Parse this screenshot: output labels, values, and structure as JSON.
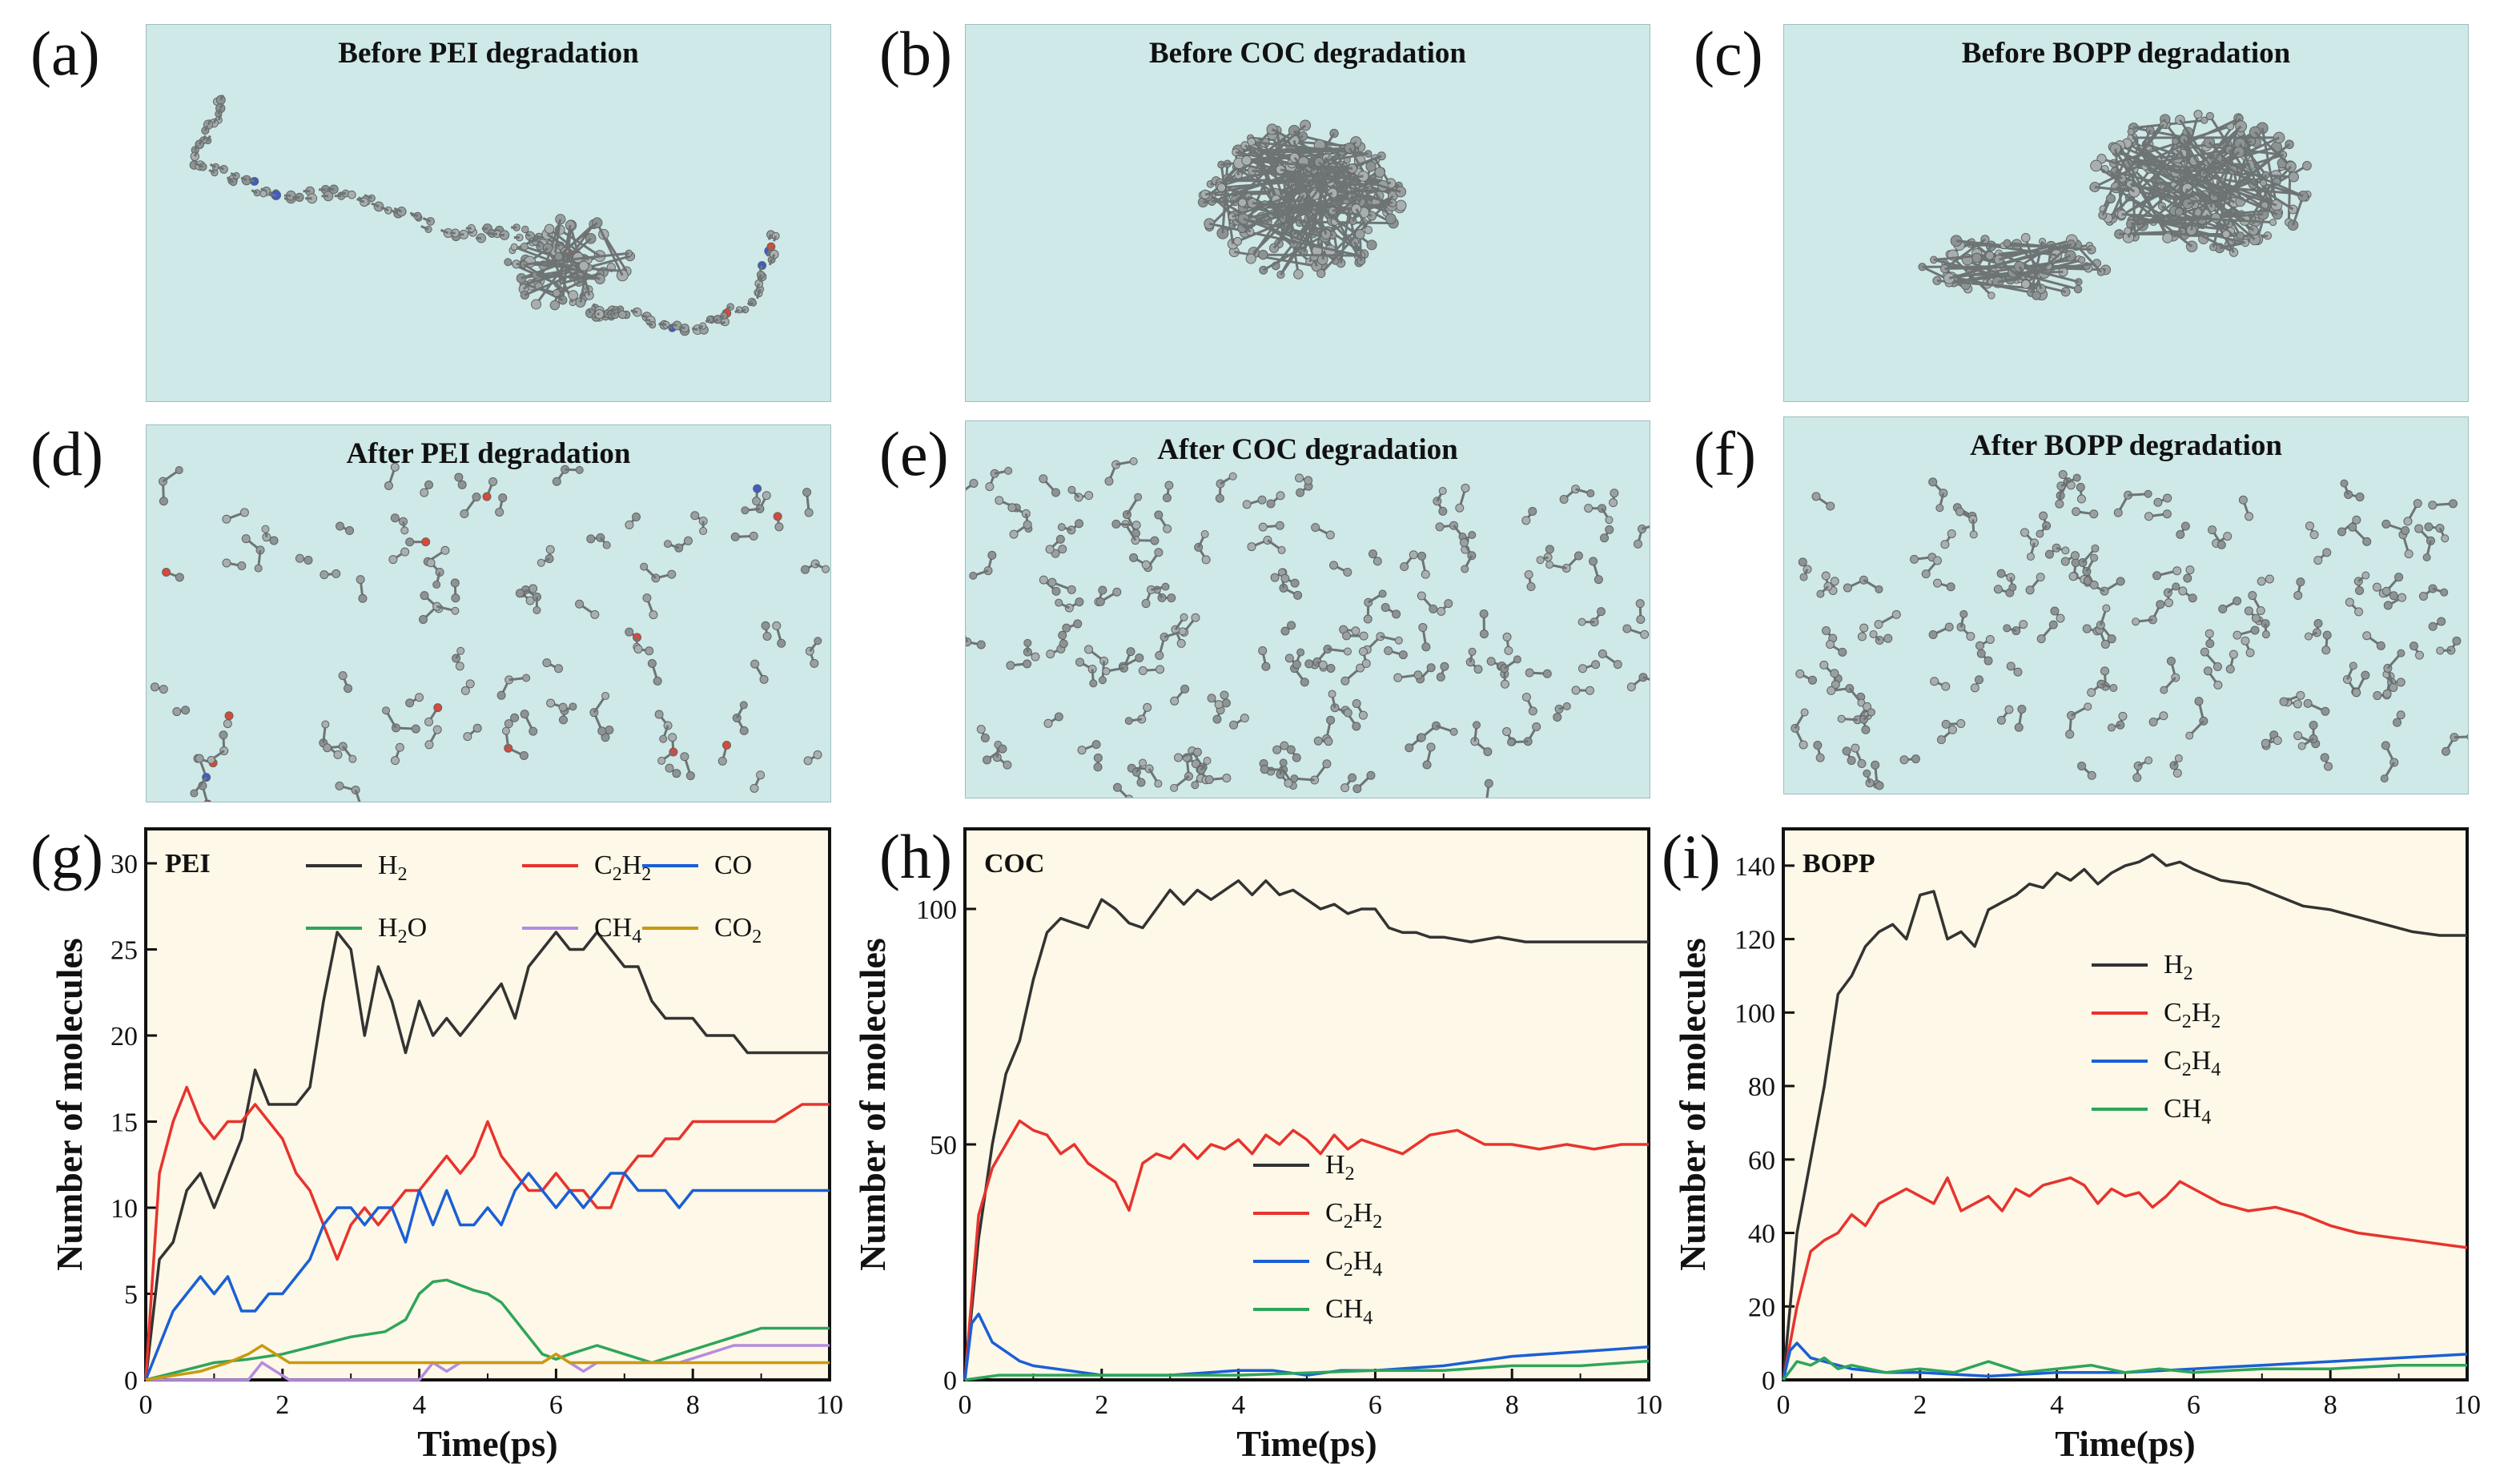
{
  "panel_labels": [
    "(a)",
    "(b)",
    "(c)",
    "(d)",
    "(e)",
    "(f)",
    "(g)",
    "(h)",
    "(i)"
  ],
  "snapshots": {
    "a": "Before PEI degradation",
    "b": "Before COC degradation",
    "c": "Before BOPP degradation",
    "d": "After PEI degradation",
    "e": "After  COC degradation",
    "f": "After  BOPP degradation"
  },
  "colors": {
    "H2": "#333333",
    "C2H2": "#e8332e",
    "C2H4": "#1a5fd6",
    "CO": "#1a5fd6",
    "H2O": "#2ea55a",
    "CH4": "#2ea55a",
    "CH4_pei": "#b48be0",
    "CO2": "#c99a10",
    "plot_bg": "#fdf8e7",
    "panel_bg": "#cfe8e8"
  },
  "chart_data": [
    {
      "id": "g",
      "type": "line",
      "title": "PEI",
      "xlabel": "Time(ps)",
      "ylabel": "Number of molecules",
      "xlim": [
        0,
        10
      ],
      "ylim": [
        0,
        32
      ],
      "xticks": [
        0,
        2,
        4,
        6,
        8,
        10
      ],
      "yticks": [
        0,
        5,
        10,
        15,
        20,
        25,
        30
      ],
      "series": [
        {
          "name": "H2",
          "label": "H",
          "sub": "2",
          "color": "#333333",
          "x": [
            0,
            0.2,
            0.4,
            0.6,
            0.8,
            1.0,
            1.2,
            1.4,
            1.6,
            1.8,
            2.0,
            2.2,
            2.4,
            2.6,
            2.8,
            3.0,
            3.2,
            3.4,
            3.6,
            3.8,
            4.0,
            4.2,
            4.4,
            4.6,
            4.8,
            5.0,
            5.2,
            5.4,
            5.6,
            5.8,
            6.0,
            6.2,
            6.4,
            6.6,
            6.8,
            7.0,
            7.2,
            7.4,
            7.6,
            7.8,
            8.0,
            8.2,
            8.4,
            8.6,
            8.8,
            9.0,
            10
          ],
          "values": [
            0,
            7,
            8,
            11,
            12,
            10,
            12,
            14,
            18,
            16,
            16,
            16,
            17,
            22,
            26,
            25,
            20,
            24,
            22,
            19,
            22,
            20,
            21,
            20,
            21,
            22,
            23,
            21,
            24,
            25,
            26,
            25,
            25,
            26,
            25,
            24,
            24,
            22,
            21,
            21,
            21,
            20,
            20,
            20,
            19,
            19,
            19
          ]
        },
        {
          "name": "C2H2",
          "label": "C",
          "sub": "2",
          "label2": "H",
          "sub2": "2",
          "color": "#e8332e",
          "x": [
            0,
            0.2,
            0.4,
            0.6,
            0.8,
            1.0,
            1.2,
            1.4,
            1.6,
            1.8,
            2.0,
            2.2,
            2.4,
            2.6,
            2.8,
            3.0,
            3.2,
            3.4,
            3.6,
            3.8,
            4.0,
            4.2,
            4.4,
            4.6,
            4.8,
            5.0,
            5.2,
            5.4,
            5.6,
            5.8,
            6.0,
            6.2,
            6.4,
            6.6,
            6.8,
            7.0,
            7.2,
            7.4,
            7.6,
            7.8,
            8.0,
            8.4,
            8.8,
            9.2,
            9.6,
            10
          ],
          "values": [
            0,
            12,
            15,
            17,
            15,
            14,
            15,
            15,
            16,
            15,
            14,
            12,
            11,
            9,
            7,
            9,
            10,
            9,
            10,
            11,
            11,
            12,
            13,
            12,
            13,
            15,
            13,
            12,
            11,
            11,
            12,
            11,
            11,
            10,
            10,
            12,
            13,
            13,
            14,
            14,
            15,
            15,
            15,
            15,
            16,
            16
          ]
        },
        {
          "name": "CO",
          "label": "CO",
          "color": "#1a5fd6",
          "x": [
            0,
            0.2,
            0.4,
            0.6,
            0.8,
            1.0,
            1.2,
            1.4,
            1.6,
            1.8,
            2.0,
            2.2,
            2.4,
            2.6,
            2.8,
            3.0,
            3.2,
            3.4,
            3.6,
            3.8,
            4.0,
            4.2,
            4.4,
            4.6,
            4.8,
            5.0,
            5.2,
            5.4,
            5.6,
            5.8,
            6.0,
            6.2,
            6.4,
            6.6,
            6.8,
            7.0,
            7.2,
            7.4,
            7.6,
            7.8,
            8.0,
            8.4,
            8.8,
            9.2,
            9.6,
            10
          ],
          "values": [
            0,
            2,
            4,
            5,
            6,
            5,
            6,
            4,
            4,
            5,
            5,
            6,
            7,
            9,
            10,
            10,
            9,
            10,
            10,
            8,
            11,
            9,
            11,
            9,
            9,
            10,
            9,
            11,
            12,
            11,
            10,
            11,
            10,
            11,
            12,
            12,
            11,
            11,
            11,
            10,
            11,
            11,
            11,
            11,
            11,
            11
          ]
        },
        {
          "name": "H2O",
          "label": "H",
          "sub": "2",
          "label2": "O",
          "color": "#2ea55a",
          "x": [
            0,
            0.5,
            1.0,
            1.5,
            2.0,
            2.5,
            3.0,
            3.5,
            3.8,
            4.0,
            4.2,
            4.4,
            4.6,
            4.8,
            5.0,
            5.2,
            5.4,
            5.6,
            5.8,
            6.0,
            6.2,
            6.6,
            7.0,
            7.4,
            7.8,
            8.2,
            8.6,
            9.0,
            10
          ],
          "values": [
            0,
            0.5,
            1,
            1.2,
            1.5,
            2,
            2.5,
            2.8,
            3.5,
            5,
            5.7,
            5.8,
            5.5,
            5.2,
            5,
            4.5,
            3.5,
            2.5,
            1.5,
            1.2,
            1.5,
            2,
            1.5,
            1,
            1.5,
            2,
            2.5,
            3,
            3
          ]
        },
        {
          "name": "CH4",
          "label": "CH",
          "sub": "4",
          "color": "#b48be0",
          "x": [
            0,
            1.0,
            1.5,
            1.7,
            1.9,
            2.1,
            2.3,
            4.0,
            4.2,
            4.4,
            4.6,
            5.0,
            5.8,
            6.0,
            6.2,
            6.4,
            6.6,
            7.0,
            7.4,
            7.8,
            8.2,
            8.6,
            10
          ],
          "values": [
            0,
            0,
            0,
            1,
            0.5,
            0,
            0,
            0,
            1,
            0.5,
            1,
            1,
            1,
            1.5,
            1,
            0.5,
            1,
            1,
            1,
            1,
            1.5,
            2,
            2
          ]
        },
        {
          "name": "CO2",
          "label": "CO",
          "sub": "2",
          "color": "#c99a10",
          "x": [
            0,
            0.8,
            1.2,
            1.5,
            1.7,
            1.9,
            2.1,
            2.4,
            3.0,
            4.0,
            5.0,
            5.8,
            6.0,
            6.2,
            6.6,
            7.0,
            8.0,
            10
          ],
          "values": [
            0,
            0.5,
            1,
            1.5,
            2,
            1.5,
            1,
            1,
            1,
            1,
            1,
            1,
            1.5,
            1,
            1,
            1,
            1,
            1
          ]
        }
      ]
    },
    {
      "id": "h",
      "type": "line",
      "title": "COC",
      "xlabel": "Time(ps)",
      "ylabel": "Number of molecules",
      "xlim": [
        0,
        10
      ],
      "ylim": [
        0,
        117
      ],
      "xticks": [
        0,
        2,
        4,
        6,
        8,
        10
      ],
      "yticks": [
        0,
        50,
        100
      ],
      "series": [
        {
          "name": "H2",
          "label": "H",
          "sub": "2",
          "color": "#333333",
          "x": [
            0,
            0.2,
            0.4,
            0.6,
            0.8,
            1.0,
            1.2,
            1.4,
            1.6,
            1.8,
            2.0,
            2.2,
            2.4,
            2.6,
            2.8,
            3.0,
            3.2,
            3.4,
            3.6,
            3.8,
            4.0,
            4.2,
            4.4,
            4.6,
            4.8,
            5.0,
            5.2,
            5.4,
            5.6,
            5.8,
            6.0,
            6.2,
            6.4,
            6.6,
            6.8,
            7.0,
            7.4,
            7.8,
            8.2,
            8.6,
            9.0,
            10
          ],
          "values": [
            0,
            30,
            50,
            65,
            72,
            85,
            95,
            98,
            97,
            96,
            102,
            100,
            97,
            96,
            100,
            104,
            101,
            104,
            102,
            104,
            106,
            103,
            106,
            103,
            104,
            102,
            100,
            101,
            99,
            100,
            100,
            96,
            95,
            95,
            94,
            94,
            93,
            94,
            93,
            93,
            93,
            93
          ]
        },
        {
          "name": "C2H2",
          "label": "C",
          "sub": "2",
          "label2": "H",
          "sub2": "2",
          "color": "#e8332e",
          "x": [
            0,
            0.2,
            0.4,
            0.6,
            0.8,
            1.0,
            1.2,
            1.4,
            1.6,
            1.8,
            2.0,
            2.2,
            2.4,
            2.6,
            2.8,
            3.0,
            3.2,
            3.4,
            3.6,
            3.8,
            4.0,
            4.2,
            4.4,
            4.6,
            4.8,
            5.0,
            5.2,
            5.4,
            5.6,
            5.8,
            6.0,
            6.4,
            6.8,
            7.2,
            7.6,
            8.0,
            8.4,
            8.8,
            9.2,
            9.6,
            10
          ],
          "values": [
            0,
            35,
            45,
            50,
            55,
            53,
            52,
            48,
            50,
            46,
            44,
            42,
            36,
            46,
            48,
            47,
            50,
            47,
            50,
            49,
            51,
            48,
            52,
            50,
            53,
            51,
            48,
            52,
            49,
            51,
            50,
            48,
            52,
            53,
            50,
            50,
            49,
            50,
            49,
            50,
            50
          ]
        },
        {
          "name": "C2H4",
          "label": "C",
          "sub": "2",
          "label2": "H",
          "sub2": "4",
          "color": "#1a5fd6",
          "x": [
            0,
            0.1,
            0.2,
            0.4,
            0.6,
            0.8,
            1.0,
            1.5,
            2.0,
            3.0,
            4.0,
            4.5,
            5.0,
            5.5,
            6.0,
            7.0,
            8.0,
            9.0,
            10
          ],
          "values": [
            0,
            12,
            14,
            8,
            6,
            4,
            3,
            2,
            1,
            1,
            2,
            2,
            1,
            2,
            2,
            3,
            5,
            6,
            7
          ]
        },
        {
          "name": "CH4",
          "label": "CH",
          "sub": "4",
          "color": "#2ea55a",
          "x": [
            0,
            0.5,
            1.0,
            2.0,
            3.0,
            4.0,
            5.0,
            6.0,
            7.0,
            8.0,
            9.0,
            10
          ],
          "values": [
            0,
            1,
            1,
            1,
            1,
            1,
            1.5,
            2,
            2,
            3,
            3,
            4
          ]
        }
      ],
      "legend": "center"
    },
    {
      "id": "i",
      "type": "line",
      "title": "BOPP",
      "xlabel": "Time(ps)",
      "ylabel": "Number of molecules",
      "xlim": [
        0,
        10
      ],
      "ylim": [
        0,
        150
      ],
      "xticks": [
        0,
        2,
        4,
        6,
        8,
        10
      ],
      "yticks": [
        0,
        20,
        40,
        60,
        80,
        100,
        120,
        140
      ],
      "series": [
        {
          "name": "H2",
          "label": "H",
          "sub": "2",
          "color": "#333333",
          "x": [
            0,
            0.2,
            0.4,
            0.6,
            0.8,
            1.0,
            1.2,
            1.4,
            1.6,
            1.8,
            2.0,
            2.2,
            2.4,
            2.6,
            2.8,
            3.0,
            3.2,
            3.4,
            3.6,
            3.8,
            4.0,
            4.2,
            4.4,
            4.6,
            4.8,
            5.0,
            5.2,
            5.4,
            5.6,
            5.8,
            6.0,
            6.4,
            6.8,
            7.2,
            7.6,
            8.0,
            8.4,
            8.8,
            9.2,
            9.6,
            10
          ],
          "values": [
            0,
            40,
            60,
            80,
            105,
            110,
            118,
            122,
            124,
            120,
            132,
            133,
            120,
            122,
            118,
            128,
            130,
            132,
            135,
            134,
            138,
            136,
            139,
            135,
            138,
            140,
            141,
            143,
            140,
            141,
            139,
            136,
            135,
            132,
            129,
            128,
            126,
            124,
            122,
            121,
            121
          ]
        },
        {
          "name": "C2H2",
          "label": "C",
          "sub": "2",
          "label2": "H",
          "sub2": "2",
          "color": "#e8332e",
          "x": [
            0,
            0.2,
            0.4,
            0.6,
            0.8,
            1.0,
            1.2,
            1.4,
            1.6,
            1.8,
            2.0,
            2.2,
            2.4,
            2.6,
            2.8,
            3.0,
            3.2,
            3.4,
            3.6,
            3.8,
            4.0,
            4.2,
            4.4,
            4.6,
            4.8,
            5.0,
            5.2,
            5.4,
            5.6,
            5.8,
            6.0,
            6.4,
            6.8,
            7.2,
            7.6,
            8.0,
            8.4,
            8.8,
            9.2,
            9.6,
            10
          ],
          "values": [
            0,
            20,
            35,
            38,
            40,
            45,
            42,
            48,
            50,
            52,
            50,
            48,
            55,
            46,
            48,
            50,
            46,
            52,
            50,
            53,
            54,
            55,
            53,
            48,
            52,
            50,
            51,
            47,
            50,
            54,
            52,
            48,
            46,
            47,
            45,
            42,
            40,
            39,
            38,
            37,
            36
          ]
        },
        {
          "name": "C2H4",
          "label": "C",
          "sub": "2",
          "label2": "H",
          "sub2": "4",
          "color": "#1a5fd6",
          "x": [
            0,
            0.1,
            0.2,
            0.4,
            0.6,
            1.0,
            1.5,
            2.0,
            3.0,
            4.0,
            5.0,
            6.0,
            7.0,
            8.0,
            9.0,
            10
          ],
          "values": [
            0,
            8,
            10,
            6,
            5,
            3,
            2,
            2,
            1,
            2,
            2,
            3,
            4,
            5,
            6,
            7
          ]
        },
        {
          "name": "CH4",
          "label": "CH",
          "sub": "4",
          "color": "#2ea55a",
          "x": [
            0,
            0.2,
            0.4,
            0.6,
            0.8,
            1.0,
            1.5,
            2.0,
            2.5,
            3.0,
            3.5,
            4.0,
            4.5,
            5.0,
            5.5,
            6.0,
            7.0,
            8.0,
            9.0,
            10
          ],
          "values": [
            0,
            5,
            4,
            6,
            3,
            4,
            2,
            3,
            2,
            5,
            2,
            3,
            4,
            2,
            3,
            2,
            3,
            3,
            4,
            4
          ]
        }
      ],
      "legend": "center-left"
    }
  ]
}
